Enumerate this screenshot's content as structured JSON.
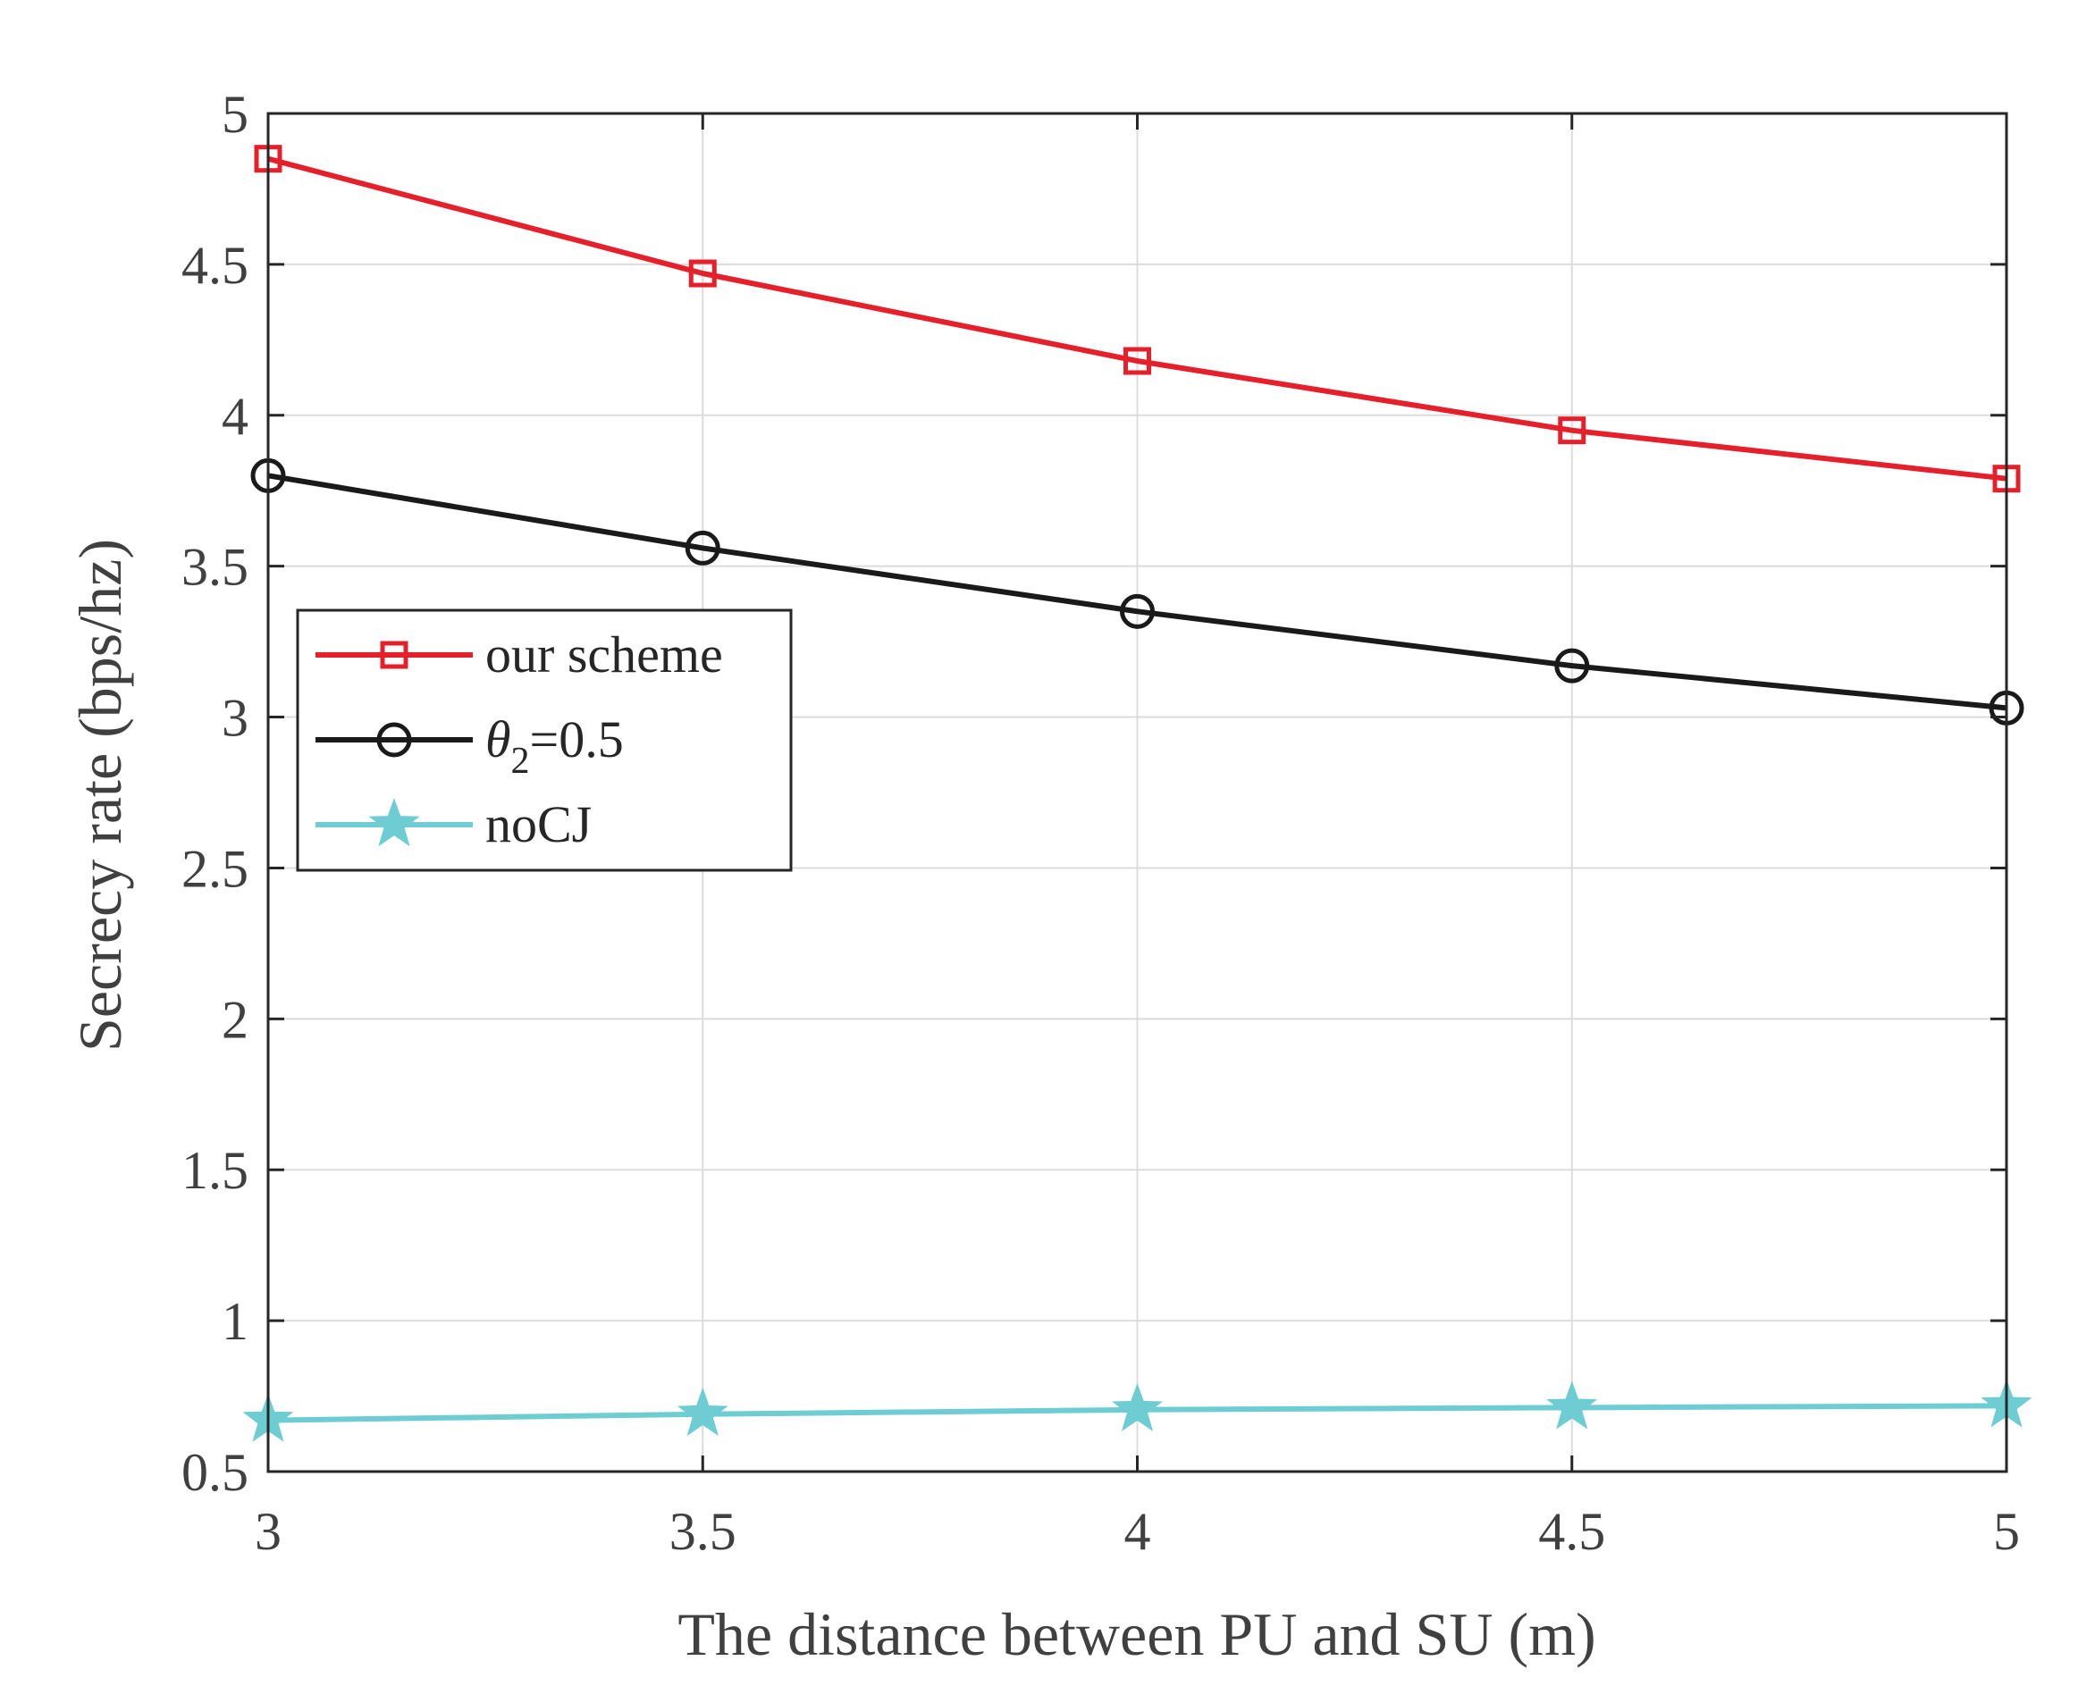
{
  "chart_data": {
    "type": "line",
    "title": "",
    "xlabel": "The distance between PU and SU (m)",
    "ylabel": "Secrecy rate (bps/hz)",
    "x": [
      3,
      3.5,
      4,
      4.5,
      5
    ],
    "xlim": [
      3,
      5
    ],
    "ylim": [
      0.5,
      5
    ],
    "xticks": [
      3,
      3.5,
      4,
      4.5,
      5
    ],
    "xtick_labels": [
      "3",
      "3.5",
      "4",
      "4.5",
      "5"
    ],
    "yticks": [
      0.5,
      1,
      1.5,
      2,
      2.5,
      3,
      3.5,
      4,
      4.5,
      5
    ],
    "ytick_labels": [
      "0.5",
      "1",
      "1.5",
      "2",
      "2.5",
      "3",
      "3.5",
      "4",
      "4.5",
      "5"
    ],
    "grid": true,
    "legend_position": "upper-left",
    "series": [
      {
        "name": "our scheme",
        "legend_main": "our scheme",
        "legend_sub": "",
        "legend_tail": "",
        "color": "#e5202a",
        "marker": "square",
        "values": [
          4.85,
          4.47,
          4.18,
          3.95,
          3.79
        ]
      },
      {
        "name": "θ2=0.5",
        "legend_main": "θ",
        "legend_sub": "2",
        "legend_tail": "=0.5",
        "color": "#1a1a1a",
        "marker": "circle",
        "values": [
          3.8,
          3.56,
          3.35,
          3.17,
          3.03
        ]
      },
      {
        "name": "noCJ",
        "legend_main": "noCJ",
        "legend_sub": "",
        "legend_tail": "",
        "color": "#6dcdd3",
        "marker": "star",
        "values": [
          0.67,
          0.69,
          0.705,
          0.712,
          0.718
        ]
      }
    ]
  }
}
